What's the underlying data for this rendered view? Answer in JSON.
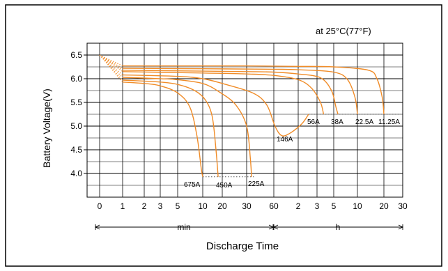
{
  "chart_data": {
    "type": "line",
    "title": "",
    "annotation": "at 25°C(77°F)",
    "ylabel": "Battery Voltage(V)",
    "xlabel": "Discharge Time",
    "ylim": [
      3.5,
      6.75
    ],
    "y_ticks": [
      "6.5",
      "6.0",
      "5.5",
      "5.0",
      "4.5",
      "4.0"
    ],
    "grid": true,
    "x_ticks": [
      {
        "label": "0",
        "minutes": 0
      },
      {
        "label": "1",
        "minutes": 1
      },
      {
        "label": "2",
        "minutes": 2
      },
      {
        "label": "3",
        "minutes": 3
      },
      {
        "label": "5",
        "minutes": 5
      },
      {
        "label": "10",
        "minutes": 10
      },
      {
        "label": "20",
        "minutes": 20
      },
      {
        "label": "30",
        "minutes": 30
      },
      {
        "label": "60",
        "minutes": 60
      },
      {
        "label": "2",
        "minutes": 120
      },
      {
        "label": "3",
        "minutes": 180
      },
      {
        "label": "5",
        "minutes": 300
      },
      {
        "label": "10",
        "minutes": 600
      },
      {
        "label": "20",
        "minutes": 1200
      },
      {
        "label": "30",
        "minutes": 1800
      }
    ],
    "time_units": {
      "minutes_label": "min",
      "hours_label": "h"
    },
    "cutoff_line_voltage": 5.25,
    "cutoff_line_low": 3.93,
    "series": [
      {
        "name": "675A",
        "points": [
          [
            1,
            5.93
          ],
          [
            2,
            5.9
          ],
          [
            3,
            5.85
          ],
          [
            5,
            5.7
          ],
          [
            7,
            5.4
          ],
          [
            8.5,
            4.8
          ],
          [
            9.6,
            4.1
          ],
          [
            10,
            3.93
          ]
        ]
      },
      {
        "name": "450A",
        "points": [
          [
            1,
            5.97
          ],
          [
            2,
            5.95
          ],
          [
            3,
            5.93
          ],
          [
            5,
            5.88
          ],
          [
            8,
            5.75
          ],
          [
            11,
            5.55
          ],
          [
            14,
            5.2
          ],
          [
            16,
            4.5
          ],
          [
            17.3,
            3.93
          ]
        ]
      },
      {
        "name": "225A",
        "points": [
          [
            1,
            6.03
          ],
          [
            3,
            6.0
          ],
          [
            5,
            5.98
          ],
          [
            10,
            5.9
          ],
          [
            18,
            5.72
          ],
          [
            25,
            5.45
          ],
          [
            30,
            5.0
          ],
          [
            33,
            4.3
          ],
          [
            34,
            3.93
          ]
        ]
      },
      {
        "name": "146A",
        "points": [
          [
            1,
            6.08
          ],
          [
            5,
            6.05
          ],
          [
            10,
            6.0
          ],
          [
            20,
            5.9
          ],
          [
            35,
            5.7
          ],
          [
            50,
            5.45
          ],
          [
            62,
            5.0
          ],
          [
            75,
            4.8
          ],
          [
            95,
            4.85
          ],
          [
            130,
            5.05
          ],
          [
            150,
            5.25
          ]
        ]
      },
      {
        "name": "56A",
        "points": [
          [
            1,
            6.15
          ],
          [
            10,
            6.12
          ],
          [
            30,
            6.1
          ],
          [
            60,
            6.07
          ],
          [
            120,
            5.98
          ],
          [
            160,
            5.8
          ],
          [
            200,
            5.5
          ],
          [
            220,
            5.25
          ]
        ]
      },
      {
        "name": "38A",
        "points": [
          [
            1,
            6.18
          ],
          [
            10,
            6.16
          ],
          [
            30,
            6.15
          ],
          [
            60,
            6.14
          ],
          [
            120,
            6.1
          ],
          [
            200,
            6.02
          ],
          [
            280,
            5.75
          ],
          [
            320,
            5.4
          ],
          [
            340,
            5.25
          ]
        ]
      },
      {
        "name": "22.5A",
        "points": [
          [
            1,
            6.22
          ],
          [
            10,
            6.21
          ],
          [
            60,
            6.2
          ],
          [
            120,
            6.19
          ],
          [
            300,
            6.14
          ],
          [
            450,
            5.98
          ],
          [
            560,
            5.6
          ],
          [
            600,
            5.25
          ]
        ]
      },
      {
        "name": "11.25A",
        "points": [
          [
            1,
            6.27
          ],
          [
            30,
            6.27
          ],
          [
            120,
            6.26
          ],
          [
            300,
            6.25
          ],
          [
            800,
            6.18
          ],
          [
            1000,
            6.0
          ],
          [
            1150,
            5.6
          ],
          [
            1200,
            5.25
          ]
        ]
      }
    ],
    "line_color": "#f08c28",
    "grid_color": "#000000"
  }
}
